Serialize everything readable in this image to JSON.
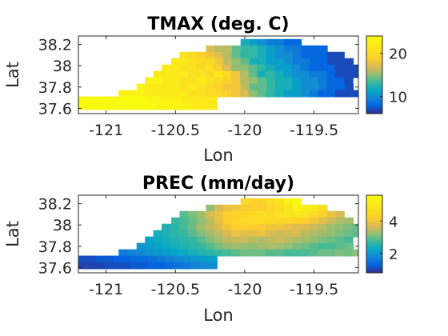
{
  "chart_data": [
    {
      "type": "heatmap",
      "title": "TMAX (deg. C)",
      "xlabel": "Lon",
      "ylabel": "Lat",
      "xlim": [
        -121.2,
        -119.18
      ],
      "ylim": [
        37.55,
        38.28
      ],
      "xticks": [
        -121,
        -120.5,
        -120,
        -119.5
      ],
      "xtick_labels": [
        "-121",
        "-120.5",
        "-120",
        "-119.5"
      ],
      "yticks": [
        37.6,
        37.8,
        38,
        38.2
      ],
      "ytick_labels": [
        "37.6",
        "37.8",
        "38",
        "38.2"
      ],
      "colorbar": {
        "range": [
          6,
          24
        ],
        "ticks": [
          10,
          20
        ],
        "tick_labels": [
          "10",
          "20"
        ],
        "colormap": "parula"
      },
      "grid": false,
      "cell_size_deg": 0.0625,
      "rows": [
        {
          "lat": 38.22,
          "lon_start": -120.03,
          "values": [
            12,
            11,
            10,
            9,
            9,
            8,
            8
          ]
        },
        {
          "lat": 38.16,
          "lon_start": -120.28,
          "values": [
            17,
            16,
            16,
            14,
            13,
            13,
            12,
            11,
            10,
            9,
            9,
            8,
            8,
            8
          ]
        },
        {
          "lat": 38.1,
          "lon_start": -120.47,
          "values": [
            21,
            20,
            19,
            18,
            17,
            16,
            14,
            13,
            13,
            12,
            11,
            10,
            10,
            9,
            8,
            8,
            8,
            7,
            7
          ]
        },
        {
          "lat": 38.04,
          "lon_start": -120.53,
          "values": [
            22,
            22,
            21,
            20,
            20,
            18,
            16,
            15,
            14,
            12,
            12,
            11,
            11,
            10,
            9,
            9,
            8,
            8,
            7,
            7,
            7
          ]
        },
        {
          "lat": 37.98,
          "lon_start": -120.6,
          "values": [
            22,
            22,
            21,
            21,
            20,
            21,
            19,
            17,
            15,
            15,
            14,
            13,
            12,
            11,
            11,
            10,
            9,
            8,
            8,
            8,
            7,
            7,
            7
          ]
        },
        {
          "lat": 37.92,
          "lon_start": -120.66,
          "values": [
            22,
            22,
            22,
            22,
            21,
            21,
            20,
            22,
            20,
            18,
            16,
            14,
            12,
            13,
            12,
            11,
            10,
            10,
            9,
            9,
            8,
            7,
            7,
            7
          ]
        },
        {
          "lat": 37.86,
          "lon_start": -120.72,
          "values": [
            23,
            23,
            22,
            22,
            21,
            21,
            22,
            21,
            20,
            19,
            18,
            16,
            15,
            14,
            13,
            12,
            12,
            11,
            10,
            10,
            9,
            8,
            8,
            7
          ]
        },
        {
          "lat": 37.8,
          "lon_start": -120.78,
          "values": [
            23,
            22,
            22,
            22,
            22,
            21,
            22,
            21,
            20,
            19,
            18,
            18,
            16,
            14,
            14,
            13,
            12,
            12,
            11,
            10,
            10,
            9,
            8,
            8,
            7
          ]
        },
        {
          "lat": 37.74,
          "lon_start": -120.91,
          "values": [
            23,
            23,
            23,
            22,
            22,
            22,
            22,
            22,
            21,
            21,
            20,
            20,
            19,
            18,
            17,
            15,
            14,
            13,
            12,
            11,
            11,
            10,
            9,
            8,
            8,
            7,
            7,
            7
          ]
        },
        {
          "lat": 37.68,
          "lon_start": -121.2,
          "values": [
            24,
            24,
            24,
            24,
            24,
            24,
            24,
            24,
            23,
            23,
            23,
            23,
            22,
            22,
            22,
            22
          ]
        },
        {
          "lat": 37.62,
          "lon_start": -121.2,
          "values": [
            24,
            24,
            24,
            24,
            24,
            24,
            24,
            24,
            24,
            23,
            23,
            23,
            23,
            22,
            22,
            22
          ]
        }
      ]
    },
    {
      "type": "heatmap",
      "title": "PREC (mm/day)",
      "xlabel": "Lon",
      "ylabel": "Lat",
      "xlim": [
        -121.2,
        -119.18
      ],
      "ylim": [
        37.55,
        38.28
      ],
      "xticks": [
        -121,
        -120.5,
        -120,
        -119.5
      ],
      "xtick_labels": [
        "-121",
        "-120.5",
        "-120",
        "-119.5"
      ],
      "yticks": [
        37.6,
        37.8,
        38,
        38.2
      ],
      "ytick_labels": [
        "37.6",
        "37.8",
        "38",
        "38.2"
      ],
      "colorbar": {
        "range": [
          0.8,
          5.6
        ],
        "ticks": [
          2,
          4
        ],
        "tick_labels": [
          "2",
          "4"
        ],
        "colormap": "parula"
      },
      "grid": false,
      "cell_size_deg": 0.0625,
      "rows": [
        {
          "lat": 38.22,
          "lon_start": -120.03,
          "values": [
            4.5,
            4.3,
            4.2,
            4.6,
            4.8,
            5.3,
            5.5
          ]
        },
        {
          "lat": 38.16,
          "lon_start": -120.28,
          "values": [
            3.2,
            3.7,
            3.9,
            4.0,
            4.1,
            4.2,
            4.2,
            4.4,
            4.6,
            4.9,
            5.3,
            5.1,
            5.0,
            4.6
          ]
        },
        {
          "lat": 38.1,
          "lon_start": -120.47,
          "values": [
            2.9,
            3.1,
            3.3,
            3.7,
            3.9,
            4.2,
            4.3,
            4.4,
            4.5,
            4.6,
            4.6,
            4.8,
            4.9,
            5.0,
            4.9,
            4.6,
            4.3,
            3.9,
            3.7
          ]
        },
        {
          "lat": 38.04,
          "lon_start": -120.53,
          "values": [
            2.7,
            2.8,
            3.0,
            3.2,
            3.5,
            3.9,
            4.2,
            4.4,
            4.5,
            4.6,
            4.6,
            4.5,
            4.4,
            4.4,
            4.3,
            4.2,
            4.0,
            3.8,
            3.6,
            3.4,
            3.3
          ]
        },
        {
          "lat": 37.98,
          "lon_start": -120.6,
          "values": [
            2.5,
            2.6,
            2.8,
            3.0,
            3.3,
            3.5,
            3.7,
            4.0,
            4.2,
            4.3,
            4.2,
            4.1,
            4.0,
            4.0,
            3.9,
            3.8,
            3.7,
            3.6,
            3.5,
            3.3,
            3.2,
            3.1,
            3.0
          ]
        },
        {
          "lat": 37.92,
          "lon_start": -120.66,
          "values": [
            2.4,
            2.5,
            2.6,
            2.7,
            2.9,
            3.1,
            3.3,
            3.5,
            3.7,
            3.9,
            3.8,
            3.8,
            3.9,
            3.7,
            3.6,
            3.6,
            3.7,
            3.5,
            3.4,
            3.3,
            3.2,
            3.1,
            3.0,
            2.9
          ]
        },
        {
          "lat": 37.86,
          "lon_start": -120.72,
          "values": [
            2.2,
            2.3,
            2.4,
            2.5,
            2.6,
            2.7,
            2.9,
            3.1,
            3.3,
            3.5,
            3.6,
            3.6,
            3.5,
            3.4,
            3.5,
            3.6,
            3.5,
            3.4,
            3.3,
            3.2,
            3.1,
            3.0,
            2.9,
            2.8
          ]
        },
        {
          "lat": 37.8,
          "lon_start": -120.78,
          "values": [
            2.0,
            2.1,
            2.2,
            2.3,
            2.4,
            2.5,
            2.6,
            2.7,
            2.9,
            3.1,
            3.2,
            3.3,
            3.2,
            3.2,
            3.3,
            3.4,
            3.3,
            3.2,
            3.1,
            3.0,
            2.9,
            2.8,
            2.8,
            2.9,
            3.0
          ]
        },
        {
          "lat": 37.74,
          "lon_start": -120.91,
          "values": [
            1.6,
            1.7,
            1.8,
            1.9,
            2.0,
            2.1,
            2.2,
            2.3,
            2.4,
            2.5,
            2.6,
            2.7,
            2.8,
            2.9,
            3.0,
            3.0,
            3.0,
            2.9,
            2.9,
            2.8,
            2.8,
            2.8,
            2.9,
            3.0,
            3.0,
            3.1,
            3.0,
            3.2
          ]
        },
        {
          "lat": 37.68,
          "lon_start": -121.2,
          "values": [
            1.1,
            1.1,
            1.2,
            1.2,
            1.3,
            1.3,
            1.4,
            1.4,
            1.5,
            1.6,
            1.7,
            1.8,
            1.9,
            2.0,
            2.1,
            2.2
          ]
        },
        {
          "lat": 37.62,
          "lon_start": -121.2,
          "values": [
            1.0,
            1.0,
            1.0,
            1.1,
            1.1,
            1.1,
            1.2,
            1.2,
            1.3,
            1.3,
            1.4,
            1.5,
            1.6,
            1.7,
            1.8,
            1.9
          ]
        }
      ]
    }
  ]
}
